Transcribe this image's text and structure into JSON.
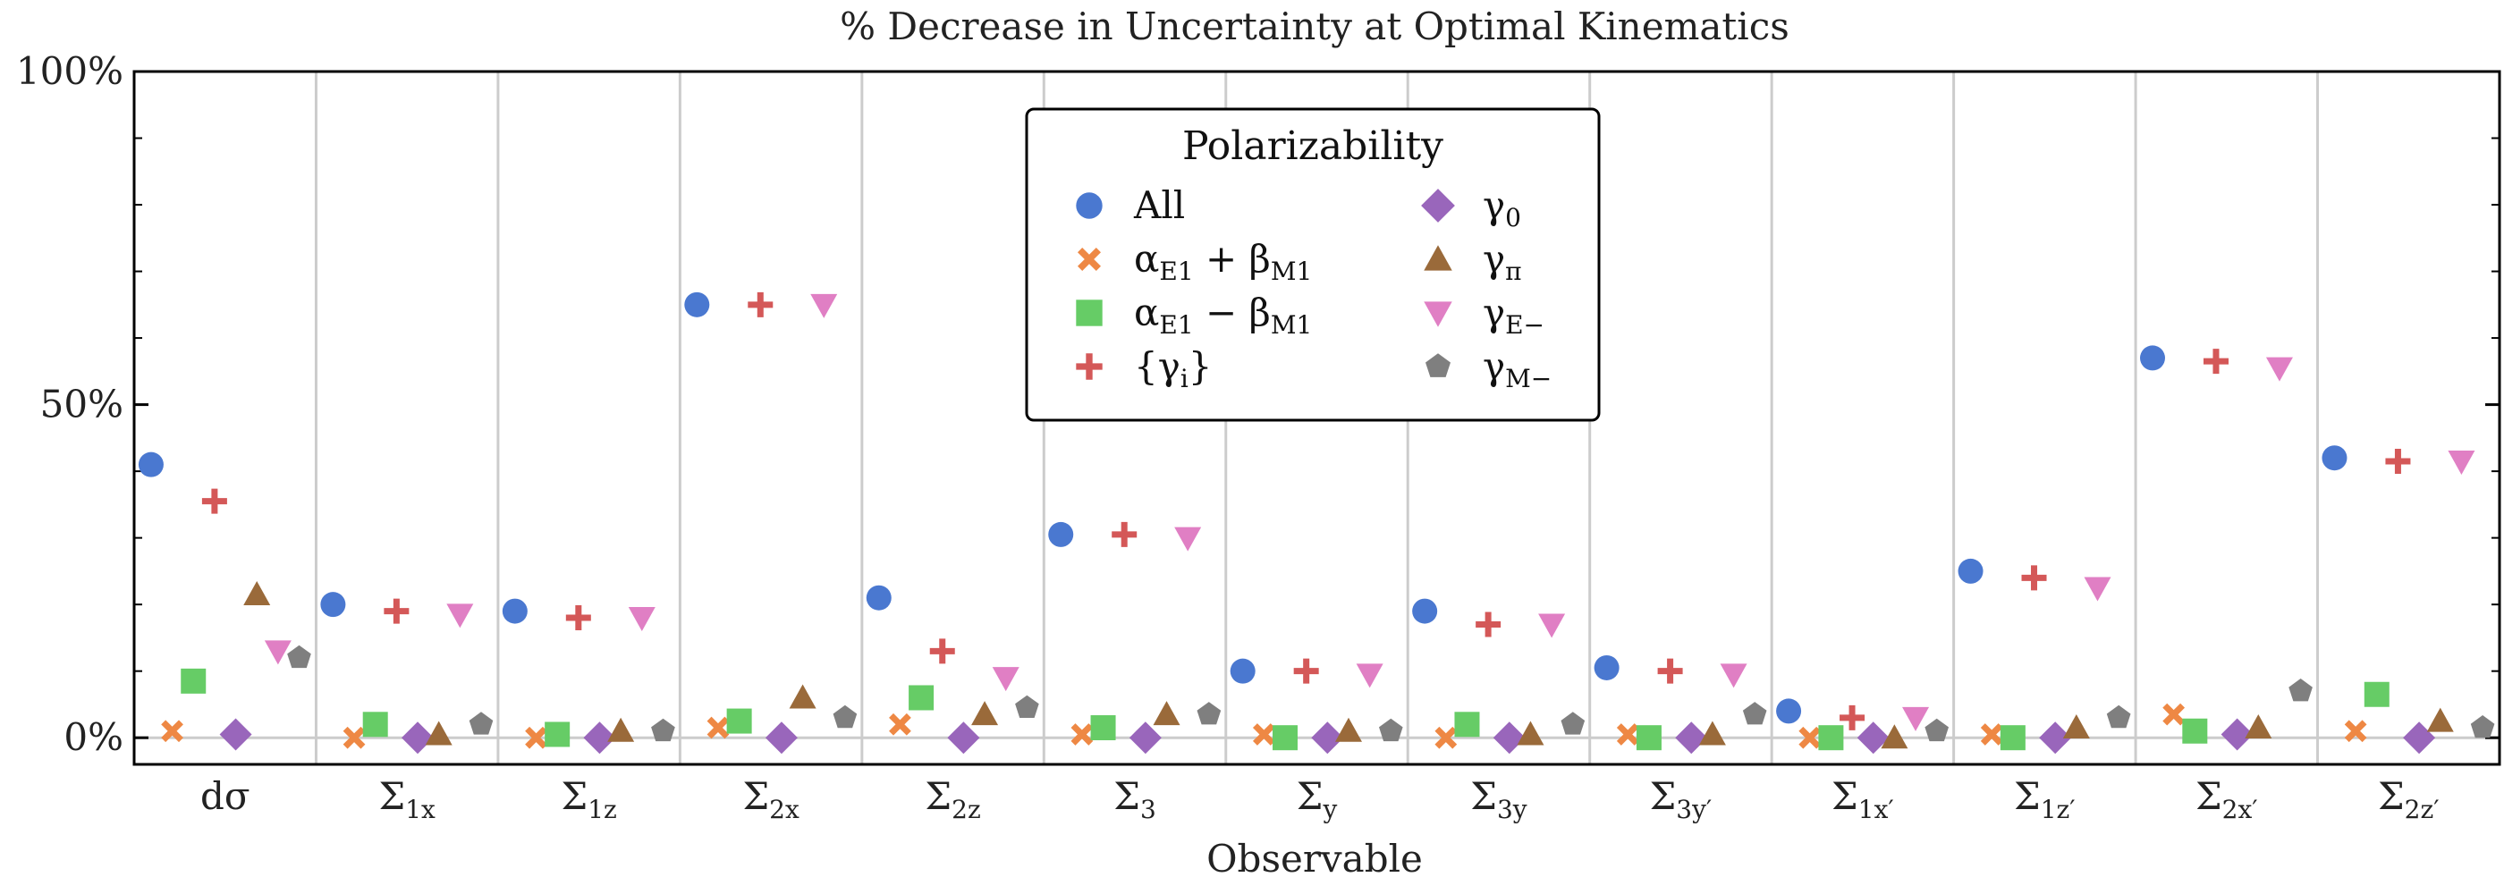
{
  "chart_data": {
    "type": "scatter",
    "title": "% Decrease in Uncertainty at Optimal Kinematics",
    "xlabel": "Observable",
    "ylabel": "",
    "ylim": [
      -0.04,
      1.0
    ],
    "yticks": [
      {
        "value": 0.0,
        "label": "0%"
      },
      {
        "value": 0.5,
        "label": "50%"
      },
      {
        "value": 1.0,
        "label": "100%"
      }
    ],
    "categories": [
      {
        "base": "dσ",
        "sub": ""
      },
      {
        "base": "Σ",
        "sub": "1x"
      },
      {
        "base": "Σ",
        "sub": "1z"
      },
      {
        "base": "Σ",
        "sub": "2x"
      },
      {
        "base": "Σ",
        "sub": "2z"
      },
      {
        "base": "Σ",
        "sub": "3"
      },
      {
        "base": "Σ",
        "sub": "y"
      },
      {
        "base": "Σ",
        "sub": "3y"
      },
      {
        "base": "Σ",
        "sub": "3y′"
      },
      {
        "base": "Σ",
        "sub": "1x′"
      },
      {
        "base": "Σ",
        "sub": "1z′"
      },
      {
        "base": "Σ",
        "sub": "2x′"
      },
      {
        "base": "Σ",
        "sub": "2z′"
      }
    ],
    "legend": {
      "title": "Polarizability",
      "placement": "top-center"
    },
    "series": [
      {
        "name": "All",
        "label_base": "All",
        "label_sub": "",
        "marker": "circle",
        "color": "#4a78d0",
        "values": [
          0.41,
          0.2,
          0.19,
          0.65,
          0.21,
          0.305,
          0.1,
          0.19,
          0.105,
          0.04,
          0.25,
          0.57,
          0.42
        ]
      },
      {
        "name": "αE1 + βM1",
        "label_base": "α",
        "label_sub": "E1",
        "label_rest": " + β",
        "label_sub2": "M1",
        "marker": "x",
        "color": "#ee8844",
        "values": [
          0.01,
          0.0,
          0.0,
          0.015,
          0.02,
          0.005,
          0.005,
          0.0,
          0.005,
          0.0,
          0.005,
          0.035,
          0.01
        ]
      },
      {
        "name": "αE1 − βM1",
        "label_base": "α",
        "label_sub": "E1",
        "label_rest": " − β",
        "label_sub2": "M1",
        "marker": "square",
        "color": "#66cc66",
        "values": [
          0.085,
          0.02,
          0.005,
          0.025,
          0.06,
          0.015,
          0.0,
          0.02,
          0.0,
          0.0,
          0.0,
          0.01,
          0.065
        ]
      },
      {
        "name": "{γi}",
        "label_base": "{γ",
        "label_sub": "i",
        "label_rest": "}",
        "marker": "plus",
        "color": "#d45858",
        "values": [
          0.355,
          0.19,
          0.18,
          0.65,
          0.13,
          0.305,
          0.1,
          0.17,
          0.1,
          0.03,
          0.24,
          0.565,
          0.415
        ]
      },
      {
        "name": "γ0",
        "label_base": "γ",
        "label_sub": "0",
        "marker": "diamond",
        "color": "#9966bb",
        "values": [
          0.005,
          0.0,
          0.0,
          0.0,
          0.0,
          0.0,
          0.0,
          0.0,
          0.0,
          0.0,
          0.0,
          0.005,
          0.0
        ]
      },
      {
        "name": "γπ",
        "label_base": "γ",
        "label_sub": "π",
        "marker": "triangle-up",
        "color": "#9a6a3a",
        "values": [
          0.215,
          0.005,
          0.01,
          0.06,
          0.035,
          0.035,
          0.01,
          0.005,
          0.005,
          0.0,
          0.015,
          0.015,
          0.025
        ]
      },
      {
        "name": "γE−",
        "label_base": "γ",
        "label_sub": "E−",
        "marker": "triangle-down",
        "color": "#e07fc4",
        "values": [
          0.13,
          0.185,
          0.18,
          0.65,
          0.09,
          0.3,
          0.095,
          0.17,
          0.095,
          0.03,
          0.225,
          0.555,
          0.415
        ]
      },
      {
        "name": "γM−",
        "label_base": "γ",
        "label_sub": "M−",
        "marker": "pentagon",
        "color": "#7f7f7f",
        "values": [
          0.12,
          0.02,
          0.01,
          0.03,
          0.045,
          0.035,
          0.01,
          0.02,
          0.035,
          0.01,
          0.03,
          0.07,
          0.015
        ]
      }
    ]
  }
}
